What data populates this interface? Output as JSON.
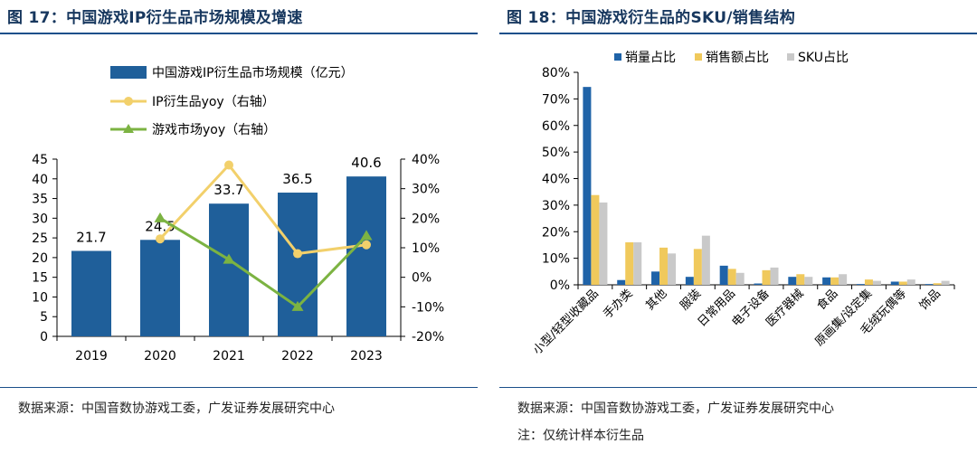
{
  "left": {
    "title": "图 17：中国游戏IP衍生品市场规模及增速",
    "source": "数据来源：中国音数协游戏工委，广发证券发展研究中心"
  },
  "right": {
    "title": "图 18：中国游戏衍生品的SKU/销售结构",
    "source": "数据来源：中国音数协游戏工委，广发证券发展研究中心",
    "note": "注：仅统计样本衍生品"
  },
  "colors": {
    "blue": "#1f5f9a",
    "yellow": "#f2d06b",
    "green": "#7cb342",
    "gray": "#c9c9c9",
    "sku_blue": "#1f63a8",
    "sku_yellow": "#f0c95c"
  },
  "chart_data": [
    {
      "type": "bar",
      "categories": [
        "2019",
        "2020",
        "2021",
        "2022",
        "2023"
      ],
      "series": [
        {
          "name": "中国游戏IP衍生品市场规模（亿元）",
          "type": "bar",
          "axis": "left",
          "values": [
            21.7,
            24.5,
            33.7,
            36.5,
            40.6
          ]
        },
        {
          "name": "IP衍生品yoy（右轴）",
          "type": "line",
          "axis": "right",
          "values": [
            null,
            13,
            38,
            8,
            11
          ]
        },
        {
          "name": "游戏市场yoy（右轴）",
          "type": "line",
          "axis": "right",
          "values": [
            null,
            20,
            6,
            -10,
            14
          ]
        }
      ],
      "data_labels": [
        "21.7",
        "24.5",
        "33.7",
        "36.5",
        "40.6"
      ],
      "ylim": [
        0,
        45
      ],
      "yticks": [
        "0",
        "5",
        "10",
        "15",
        "20",
        "25",
        "30",
        "35",
        "40",
        "45"
      ],
      "ylim_right": [
        -20,
        40
      ],
      "yticks_right": [
        "-20%",
        "-10%",
        "0%",
        "10%",
        "20%",
        "30%",
        "40%"
      ],
      "legend_position": "top-left",
      "grid": false
    },
    {
      "type": "bar",
      "categories": [
        "小型/轻型收藏品",
        "手办类",
        "其他",
        "服装",
        "日常用品",
        "电子设备",
        "医疗器械",
        "食品",
        "原画集/设定集",
        "毛绒玩偶等",
        "饰品"
      ],
      "series": [
        {
          "name": "销量占比",
          "values": [
            74.5,
            1.8,
            5,
            3,
            7.2,
            0.5,
            3,
            2.8,
            0.3,
            1.2,
            0.3
          ]
        },
        {
          "name": "销售额占比",
          "values": [
            33.8,
            16,
            14,
            13.5,
            6,
            5.5,
            4,
            2.8,
            2,
            1.2,
            0.6
          ]
        },
        {
          "name": "SKU占比",
          "values": [
            31,
            16,
            11.8,
            18.5,
            4.5,
            6.5,
            3,
            4,
            1.5,
            2,
            1.5
          ]
        }
      ],
      "ylim": [
        0,
        80
      ],
      "yticks": [
        "0%",
        "10%",
        "20%",
        "30%",
        "40%",
        "50%",
        "60%",
        "70%",
        "80%"
      ],
      "legend_position": "top",
      "grid": false
    }
  ]
}
